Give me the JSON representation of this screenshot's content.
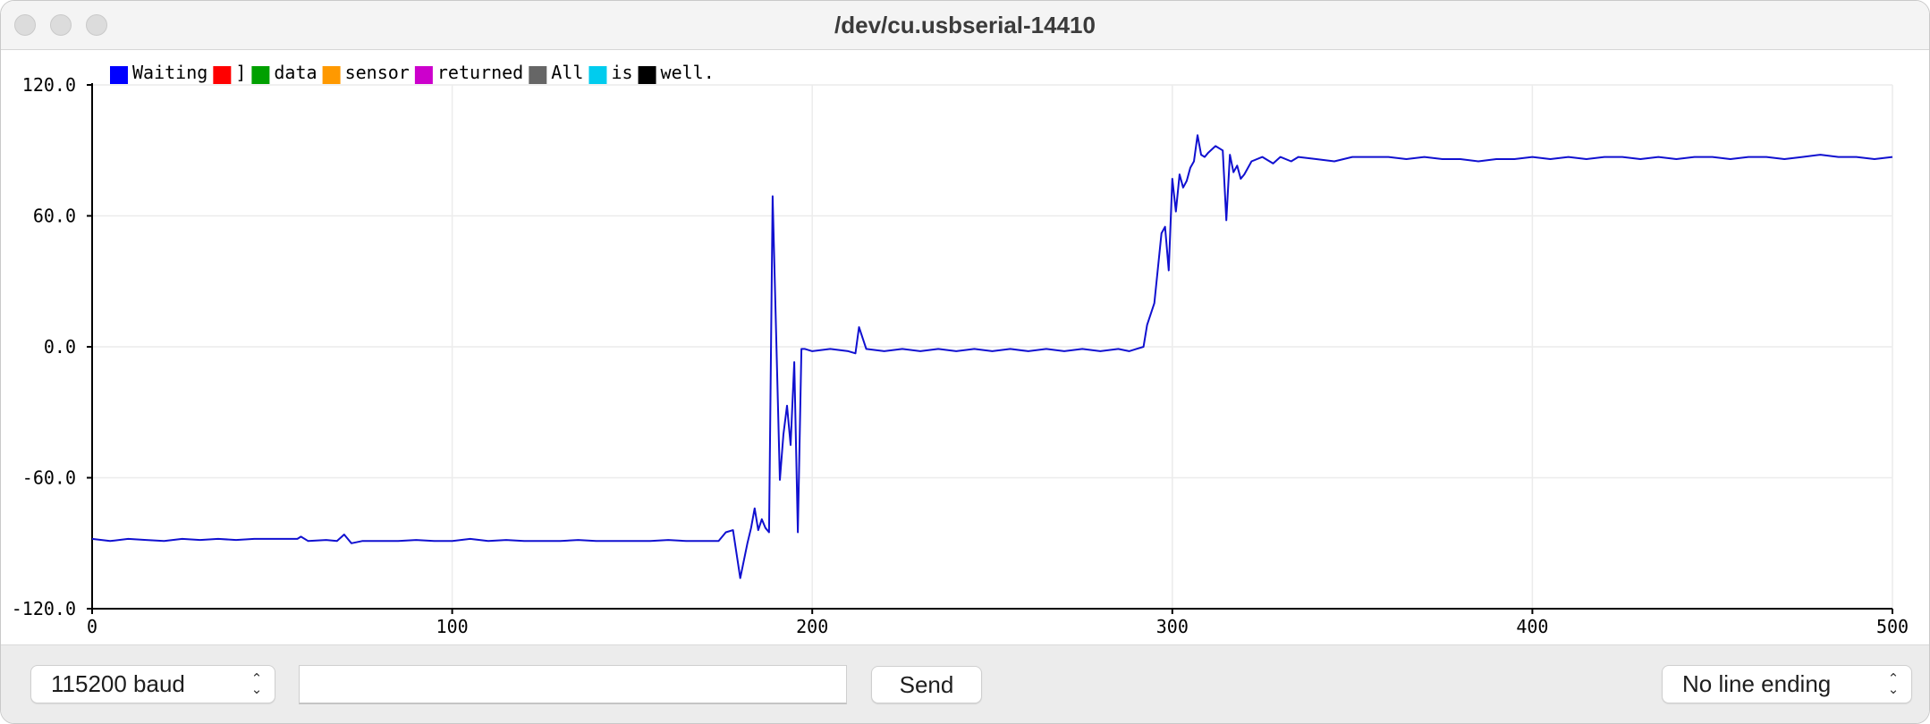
{
  "window": {
    "title": "/dev/cu.usbserial-14410"
  },
  "controls": {
    "baud_label": "115200 baud",
    "message_value": "",
    "send_label": "Send",
    "line_ending_label": "No line ending"
  },
  "colors": {
    "series_line": "#1010d0",
    "grid": "#ececec",
    "axis": "#000000"
  },
  "chart_data": {
    "type": "line",
    "xlim": [
      0,
      500
    ],
    "ylim": [
      -120,
      120
    ],
    "x_ticks": [
      "0",
      "100",
      "200",
      "300",
      "400",
      "500"
    ],
    "y_ticks": [
      "120.0",
      "60.0",
      "0.0",
      "-60.0",
      "-120.0"
    ],
    "grid": true,
    "legend_position": "top-left",
    "legend": [
      {
        "label": "Waiting",
        "color": "#0000ff"
      },
      {
        "label": "]",
        "color": "#ff0000"
      },
      {
        "label": "data",
        "color": "#00a000"
      },
      {
        "label": "sensor",
        "color": "#ff9900"
      },
      {
        "label": "returned",
        "color": "#cc00cc"
      },
      {
        "label": "All",
        "color": "#666666"
      },
      {
        "label": "is",
        "color": "#00ccee"
      },
      {
        "label": "well.",
        "color": "#000000"
      }
    ],
    "series": [
      {
        "name": "Waiting",
        "color": "#1010d0",
        "points": [
          [
            0,
            -88
          ],
          [
            5,
            -89
          ],
          [
            10,
            -88
          ],
          [
            15,
            -88.5
          ],
          [
            20,
            -89
          ],
          [
            25,
            -88
          ],
          [
            30,
            -88.5
          ],
          [
            35,
            -88
          ],
          [
            40,
            -88.5
          ],
          [
            45,
            -88
          ],
          [
            50,
            -88
          ],
          [
            55,
            -88
          ],
          [
            57,
            -88
          ],
          [
            58,
            -87
          ],
          [
            60,
            -89
          ],
          [
            65,
            -88.5
          ],
          [
            68,
            -89
          ],
          [
            70,
            -86
          ],
          [
            72,
            -90
          ],
          [
            75,
            -89
          ],
          [
            80,
            -89
          ],
          [
            85,
            -89
          ],
          [
            90,
            -88.5
          ],
          [
            95,
            -89
          ],
          [
            100,
            -89
          ],
          [
            105,
            -88
          ],
          [
            110,
            -89
          ],
          [
            115,
            -88.5
          ],
          [
            120,
            -89
          ],
          [
            125,
            -89
          ],
          [
            130,
            -89
          ],
          [
            135,
            -88.5
          ],
          [
            140,
            -89
          ],
          [
            145,
            -89
          ],
          [
            150,
            -89
          ],
          [
            155,
            -89
          ],
          [
            160,
            -88.5
          ],
          [
            165,
            -89
          ],
          [
            170,
            -89
          ],
          [
            174,
            -89
          ],
          [
            176,
            -85
          ],
          [
            178,
            -84
          ],
          [
            180,
            -106
          ],
          [
            182,
            -90
          ],
          [
            183,
            -83
          ],
          [
            184,
            -74
          ],
          [
            185,
            -84
          ],
          [
            186,
            -79
          ],
          [
            187,
            -83
          ],
          [
            188,
            -85
          ],
          [
            189,
            69
          ],
          [
            191,
            -61
          ],
          [
            192,
            -40
          ],
          [
            193,
            -27
          ],
          [
            194,
            -45
          ],
          [
            195,
            -7
          ],
          [
            196,
            -85
          ],
          [
            197,
            -1
          ],
          [
            198,
            -1
          ],
          [
            200,
            -2
          ],
          [
            205,
            -1
          ],
          [
            210,
            -2
          ],
          [
            212,
            -3
          ],
          [
            213,
            9
          ],
          [
            215,
            -1
          ],
          [
            220,
            -2
          ],
          [
            225,
            -1
          ],
          [
            230,
            -2
          ],
          [
            235,
            -1
          ],
          [
            240,
            -2
          ],
          [
            245,
            -1
          ],
          [
            250,
            -2
          ],
          [
            255,
            -1
          ],
          [
            260,
            -2
          ],
          [
            265,
            -1
          ],
          [
            270,
            -2
          ],
          [
            275,
            -1
          ],
          [
            280,
            -2
          ],
          [
            285,
            -1
          ],
          [
            288,
            -2
          ],
          [
            290,
            -1
          ],
          [
            292,
            0
          ],
          [
            293,
            10
          ],
          [
            295,
            20
          ],
          [
            297,
            52
          ],
          [
            298,
            55
          ],
          [
            299,
            35
          ],
          [
            300,
            77
          ],
          [
            301,
            62
          ],
          [
            302,
            79
          ],
          [
            303,
            73
          ],
          [
            304,
            76
          ],
          [
            305,
            82
          ],
          [
            306,
            85
          ],
          [
            307,
            97
          ],
          [
            308,
            88
          ],
          [
            309,
            87
          ],
          [
            310,
            89
          ],
          [
            312,
            92
          ],
          [
            314,
            90
          ],
          [
            315,
            58
          ],
          [
            316,
            88
          ],
          [
            317,
            80
          ],
          [
            318,
            83
          ],
          [
            319,
            77
          ],
          [
            320,
            79
          ],
          [
            322,
            85
          ],
          [
            325,
            87
          ],
          [
            328,
            84
          ],
          [
            330,
            87
          ],
          [
            333,
            85
          ],
          [
            335,
            87
          ],
          [
            340,
            86
          ],
          [
            345,
            85
          ],
          [
            350,
            87
          ],
          [
            355,
            87
          ],
          [
            360,
            87
          ],
          [
            365,
            86
          ],
          [
            370,
            87
          ],
          [
            375,
            86
          ],
          [
            380,
            86
          ],
          [
            385,
            85
          ],
          [
            390,
            86
          ],
          [
            395,
            86
          ],
          [
            400,
            87
          ],
          [
            405,
            86
          ],
          [
            410,
            87
          ],
          [
            415,
            86
          ],
          [
            420,
            87
          ],
          [
            425,
            87
          ],
          [
            430,
            86
          ],
          [
            435,
            87
          ],
          [
            440,
            86
          ],
          [
            445,
            87
          ],
          [
            450,
            87
          ],
          [
            455,
            86
          ],
          [
            460,
            87
          ],
          [
            465,
            87
          ],
          [
            470,
            86
          ],
          [
            475,
            87
          ],
          [
            480,
            88
          ],
          [
            485,
            87
          ],
          [
            490,
            87
          ],
          [
            495,
            86
          ],
          [
            500,
            87
          ]
        ]
      }
    ]
  }
}
